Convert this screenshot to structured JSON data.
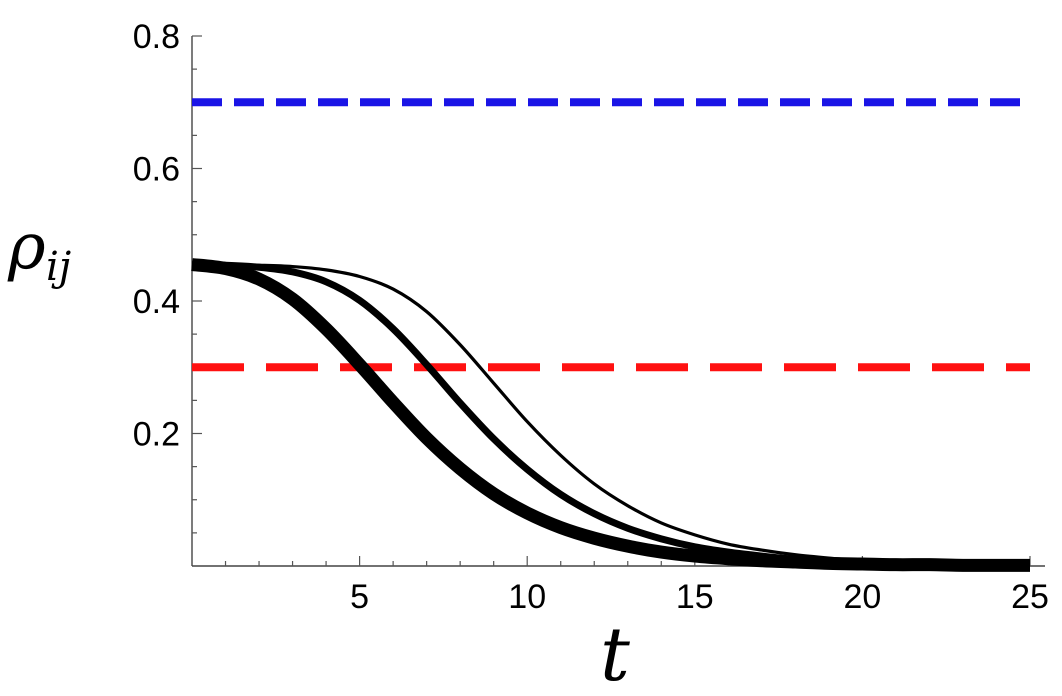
{
  "chart_data": {
    "type": "line",
    "xlabel": "t",
    "ylabel_main": "ρ",
    "ylabel_sub": "ij",
    "xlim": [
      0,
      25
    ],
    "ylim": [
      0,
      0.8
    ],
    "x_ticks": [
      5,
      10,
      15,
      20,
      25
    ],
    "x_tick_labels": [
      "5",
      "10",
      "15",
      "20",
      "25"
    ],
    "y_ticks": [
      0.2,
      0.4,
      0.6,
      0.8
    ],
    "y_tick_labels": [
      "0.2",
      "0.4",
      "0.6",
      "0.8"
    ],
    "grid": false,
    "horizontal_lines": [
      {
        "y": 0.7,
        "color": "#1a14e6",
        "style": "short-dash"
      },
      {
        "y": 0.3,
        "color": "#ff1111",
        "style": "long-dash"
      }
    ],
    "series": [
      {
        "x": [
          0,
          1,
          2,
          3,
          4,
          5,
          6,
          7,
          8,
          9,
          10,
          11,
          12,
          13,
          14,
          15,
          16,
          17,
          18,
          19,
          20,
          21,
          22,
          23,
          24,
          25
        ],
        "values": [
          0.455,
          0.449,
          0.433,
          0.403,
          0.358,
          0.304,
          0.247,
          0.193,
          0.147,
          0.109,
          0.08,
          0.058,
          0.042,
          0.03,
          0.021,
          0.015,
          0.011,
          0.008,
          0.006,
          0.004,
          0.003,
          0.002,
          0.002,
          0.001,
          0.001,
          0.001
        ],
        "color": "#000000",
        "weight": "thick"
      },
      {
        "x": [
          0,
          1,
          2,
          3,
          4,
          5,
          6,
          7,
          8,
          9,
          10,
          11,
          12,
          13,
          14,
          15,
          16,
          17,
          18,
          19,
          20,
          21,
          22,
          23,
          24,
          25
        ],
        "values": [
          0.455,
          0.454,
          0.451,
          0.444,
          0.429,
          0.401,
          0.358,
          0.304,
          0.246,
          0.192,
          0.146,
          0.108,
          0.079,
          0.057,
          0.041,
          0.029,
          0.021,
          0.015,
          0.01,
          0.007,
          0.005,
          0.004,
          0.003,
          0.002,
          0.001,
          0.001
        ],
        "color": "#000000",
        "weight": "medium"
      },
      {
        "x": [
          0,
          1,
          2,
          3,
          4,
          5,
          6,
          7,
          8,
          9,
          10,
          11,
          12,
          13,
          14,
          15,
          16,
          17,
          18,
          19,
          20,
          21,
          22,
          23,
          24,
          25
        ],
        "values": [
          0.455,
          0.455,
          0.454,
          0.452,
          0.447,
          0.437,
          0.418,
          0.384,
          0.334,
          0.276,
          0.218,
          0.167,
          0.124,
          0.091,
          0.065,
          0.047,
          0.033,
          0.024,
          0.017,
          0.012,
          0.008,
          0.006,
          0.004,
          0.003,
          0.002,
          0.002
        ],
        "color": "#000000",
        "weight": "thin"
      }
    ]
  }
}
